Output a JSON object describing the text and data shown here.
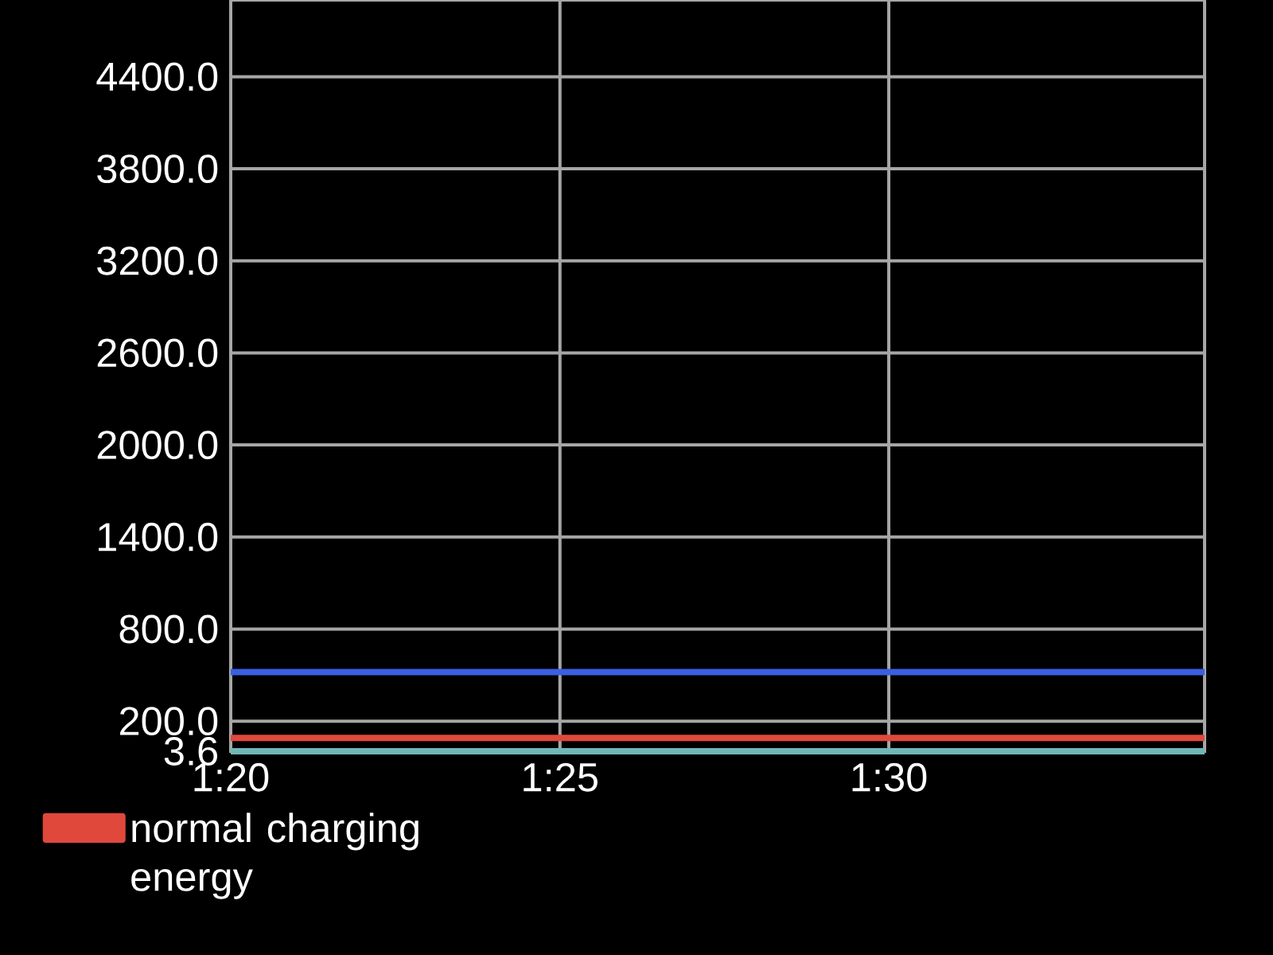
{
  "chart_data": {
    "type": "line",
    "x": [
      1.3333,
      1.58
    ],
    "series": [
      {
        "color": "#3a5fe0",
        "values": [
          520,
          520
        ]
      },
      {
        "name": "normal charging energy",
        "color": "#e0483c",
        "values": [
          90,
          90
        ]
      },
      {
        "color": "#6fb7b7",
        "values": [
          3.6,
          3.6
        ]
      }
    ],
    "xlim": [
      1.3333,
      1.58
    ],
    "xticks": [
      {
        "value": 1.3333,
        "label": "1:20"
      },
      {
        "value": 1.4167,
        "label": "1:25"
      },
      {
        "value": 1.5,
        "label": "1:30"
      }
    ],
    "ylim": [
      3.6,
      4900
    ],
    "yticks": [
      3.6,
      {
        "value": 200,
        "label": "200.0"
      },
      {
        "value": 800,
        "label": "800.0"
      },
      {
        "value": 1400,
        "label": "1400.0"
      },
      {
        "value": 2000,
        "label": "2000.0"
      },
      {
        "value": 2600,
        "label": "2600.0"
      },
      {
        "value": 3200,
        "label": "3200.0"
      },
      {
        "value": 3800,
        "label": "3800.0"
      },
      {
        "value": 4400,
        "label": "4400.0"
      }
    ],
    "grid": true,
    "legend": "bottom left",
    "marker": "none",
    "line_style": "solid"
  }
}
